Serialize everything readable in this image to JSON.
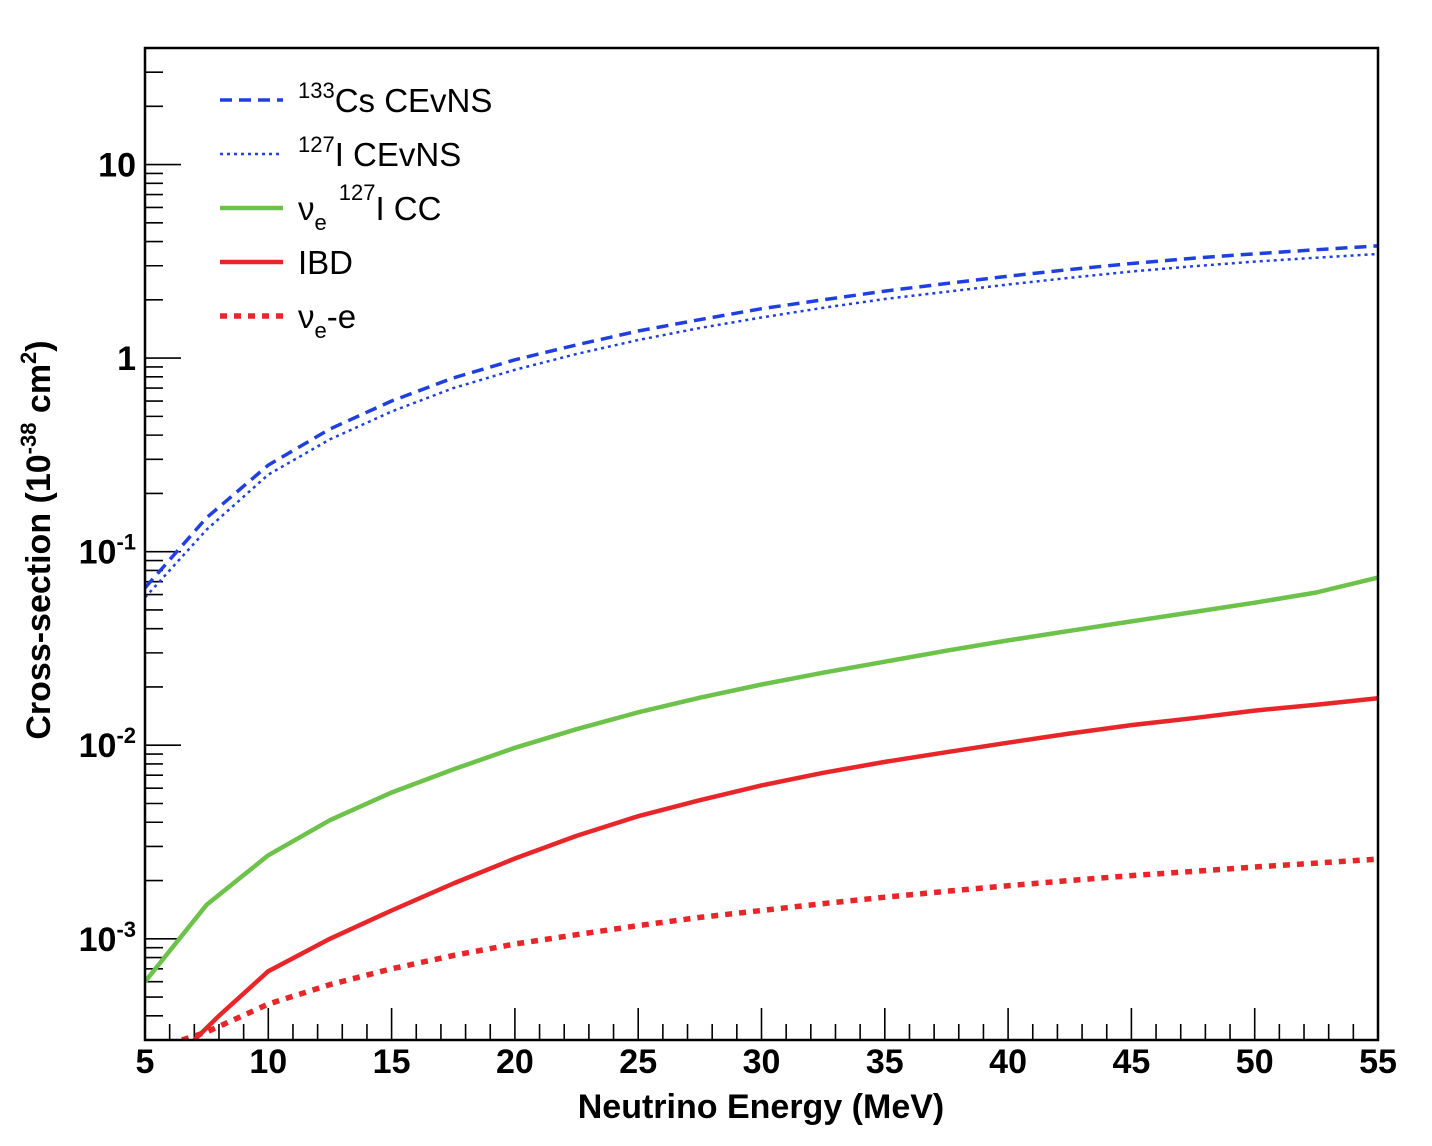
{
  "chart_data": {
    "type": "line",
    "xlabel": "Neutrino Energy (MeV)",
    "ylabel": {
      "base": "Cross-section (10",
      "exp": "-38",
      "unit": " cm",
      "unit_exp": "2",
      "close": ")"
    },
    "xlim": [
      5,
      55
    ],
    "ylim": [
      0.0003,
      40
    ],
    "yscale": "log",
    "x_ticks": [
      {
        "value": 5,
        "label": "5"
      },
      {
        "value": 10,
        "label": "10"
      },
      {
        "value": 15,
        "label": "15"
      },
      {
        "value": 20,
        "label": "20"
      },
      {
        "value": 25,
        "label": "25"
      },
      {
        "value": 30,
        "label": "30"
      },
      {
        "value": 35,
        "label": "35"
      },
      {
        "value": 40,
        "label": "40"
      },
      {
        "value": 45,
        "label": "45"
      },
      {
        "value": 50,
        "label": "50"
      },
      {
        "value": 55,
        "label": "55"
      }
    ],
    "y_ticks": [
      {
        "value": 0.001,
        "base": "10",
        "exp": "-3"
      },
      {
        "value": 0.01,
        "base": "10",
        "exp": "-2"
      },
      {
        "value": 0.1,
        "base": "10",
        "exp": "-1"
      },
      {
        "value": 1,
        "base": "1",
        "exp": ""
      },
      {
        "value": 10,
        "base": "10",
        "exp": ""
      }
    ],
    "legend_position": "top-left",
    "series": [
      {
        "id": "cs-cevns",
        "legend": {
          "sup": "133",
          "text": "Cs CEvNS"
        },
        "color": "#1f3fe0",
        "style": "dashed",
        "x": [
          5,
          7.5,
          10,
          12.5,
          15,
          17.5,
          20,
          22.5,
          25,
          27.5,
          30,
          32.5,
          35,
          37.5,
          40,
          42.5,
          45,
          47.5,
          50,
          52.5,
          55
        ],
        "y": [
          0.065,
          0.15,
          0.28,
          0.43,
          0.6,
          0.79,
          0.98,
          1.17,
          1.38,
          1.58,
          1.8,
          2.0,
          2.22,
          2.43,
          2.65,
          2.87,
          3.08,
          3.28,
          3.46,
          3.63,
          3.8
        ]
      },
      {
        "id": "i-cevns",
        "legend": {
          "sup": "127",
          "text": "I CEvNS"
        },
        "color": "#1f3fe0",
        "style": "dotted",
        "x": [
          5,
          7.5,
          10,
          12.5,
          15,
          17.5,
          20,
          22.5,
          25,
          27.5,
          30,
          32.5,
          35,
          37.5,
          40,
          42.5,
          45,
          47.5,
          50,
          52.5,
          55
        ],
        "y": [
          0.058,
          0.13,
          0.25,
          0.38,
          0.53,
          0.7,
          0.87,
          1.05,
          1.24,
          1.43,
          1.62,
          1.82,
          2.02,
          2.2,
          2.4,
          2.6,
          2.8,
          2.98,
          3.15,
          3.3,
          3.45
        ]
      },
      {
        "id": "nue-i-cc",
        "legend": {
          "text": "ν",
          "sub": "e",
          "sup": "127",
          "after": "I CC"
        },
        "color": "#6cc24a",
        "style": "solid",
        "x": [
          5,
          7.5,
          10,
          12.5,
          15,
          17.5,
          20,
          22.5,
          25,
          27.5,
          30,
          32.5,
          35,
          37.5,
          40,
          42.5,
          45,
          47.5,
          50,
          52.5,
          55
        ],
        "y": [
          0.0006,
          0.0015,
          0.0027,
          0.0041,
          0.0057,
          0.0075,
          0.0097,
          0.0121,
          0.0148,
          0.0176,
          0.0206,
          0.0237,
          0.027,
          0.0308,
          0.0348,
          0.039,
          0.0436,
          0.0487,
          0.0545,
          0.0615,
          0.0735
        ]
      },
      {
        "id": "ibd",
        "legend": {
          "text": "IBD"
        },
        "color": "#e8262a",
        "style": "solid",
        "x": [
          7,
          8,
          10,
          12.5,
          15,
          17.5,
          20,
          22.5,
          25,
          27.5,
          30,
          32.5,
          35,
          37.5,
          40,
          42.5,
          45,
          47.5,
          50,
          52.5,
          55
        ],
        "y": [
          0.0003,
          0.0004,
          0.00068,
          0.001,
          0.0014,
          0.00193,
          0.0026,
          0.0034,
          0.0043,
          0.0052,
          0.0062,
          0.0072,
          0.0082,
          0.0092,
          0.0103,
          0.0115,
          0.0127,
          0.0138,
          0.0151,
          0.0162,
          0.0175
        ]
      },
      {
        "id": "nue-e",
        "legend": {
          "text": "ν",
          "sub": "e",
          "after": "-e"
        },
        "color": "#e8262a",
        "style": "dotted-thick",
        "x": [
          6.5,
          7.5,
          10,
          12.5,
          15,
          17.5,
          20,
          22.5,
          25,
          27.5,
          30,
          32.5,
          35,
          37.5,
          40,
          42.5,
          45,
          47.5,
          50,
          52.5,
          55
        ],
        "y": [
          0.0003,
          0.00033,
          0.00046,
          0.00058,
          0.0007,
          0.00082,
          0.00094,
          0.00105,
          0.00117,
          0.00129,
          0.0014,
          0.00152,
          0.00164,
          0.00176,
          0.00188,
          0.002,
          0.00212,
          0.00223,
          0.00235,
          0.00246,
          0.00258
        ]
      }
    ]
  }
}
